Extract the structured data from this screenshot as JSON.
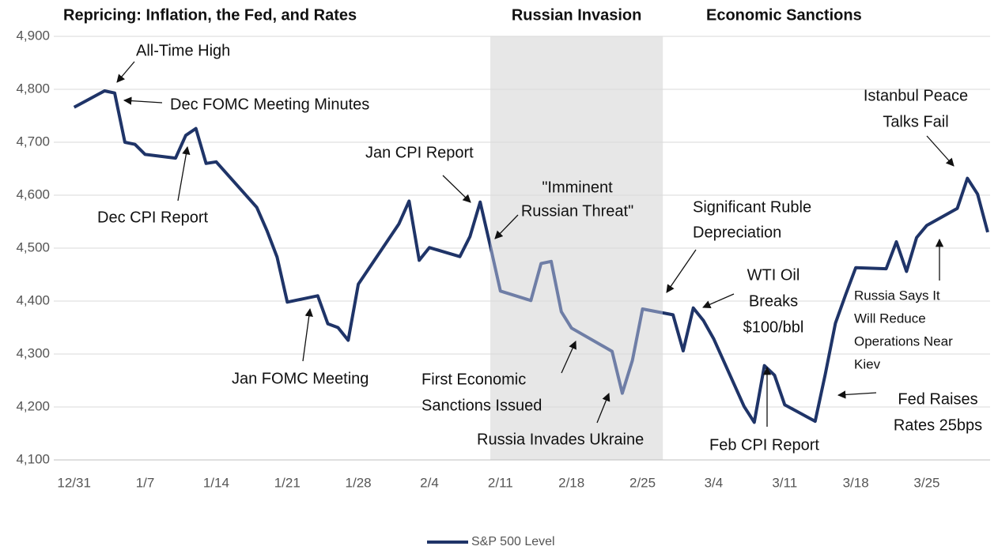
{
  "chart_data": {
    "type": "line",
    "headers": [
      "Repricing: Inflation, the Fed, and Rates",
      "Economic Sanctions"
    ],
    "shaded_region": {
      "label": "Russian Invasion",
      "start": "2/10",
      "end": "2/27",
      "color": "#e7e7e7",
      "line_color": "#6f7ea6"
    },
    "x": [
      "12/31",
      "1/3",
      "1/4",
      "1/5",
      "1/6",
      "1/7",
      "1/10",
      "1/11",
      "1/12",
      "1/13",
      "1/14",
      "1/18",
      "1/19",
      "1/20",
      "1/21",
      "1/24",
      "1/25",
      "1/26",
      "1/27",
      "1/28",
      "2/1",
      "2/2",
      "2/3",
      "2/4",
      "2/7",
      "2/8",
      "2/9",
      "2/10",
      "2/11",
      "2/14",
      "2/15",
      "2/16",
      "2/17",
      "2/18",
      "2/22",
      "2/23",
      "2/24",
      "2/25",
      "2/28",
      "3/1",
      "3/2",
      "3/3",
      "3/4",
      "3/7",
      "3/8",
      "3/9",
      "3/10",
      "3/11",
      "3/14",
      "3/15",
      "3/16",
      "3/17",
      "3/18",
      "3/21",
      "3/22",
      "3/23",
      "3/24",
      "3/25",
      "3/28",
      "3/29",
      "3/30",
      "3/31"
    ],
    "series": [
      {
        "name": "S&P 500 Level",
        "color": "#1f3468",
        "values": [
          4766,
          4797,
          4793,
          4700,
          4696,
          4677,
          4670,
          4713,
          4726,
          4660,
          4663,
          4577,
          4533,
          4483,
          4398,
          4410,
          4357,
          4350,
          4326,
          4432,
          4546,
          4589,
          4477,
          4501,
          4484,
          4522,
          4587,
          4504,
          4419,
          4401,
          4471,
          4475,
          4380,
          4349,
          4305,
          4226,
          4288,
          4385,
          4374,
          4306,
          4387,
          4363,
          4329,
          4201,
          4171,
          4278,
          4260,
          4204,
          4173,
          4262,
          4358,
          4412,
          4463,
          4461,
          4512,
          4456,
          4520,
          4543,
          4575,
          4632,
          4602,
          4530
        ]
      }
    ],
    "xlim": [
      "12/29",
      "3/31"
    ],
    "xticks": [
      "12/31",
      "1/7",
      "1/14",
      "1/21",
      "1/28",
      "2/4",
      "2/11",
      "2/18",
      "2/25",
      "3/4",
      "3/11",
      "3/18",
      "3/25"
    ],
    "ylim": [
      4100,
      4900
    ],
    "yticks": [
      {
        "value": 4100,
        "label": "4,100"
      },
      {
        "value": 4200,
        "label": "4,200"
      },
      {
        "value": 4300,
        "label": "4,300"
      },
      {
        "value": 4400,
        "label": "4,400"
      },
      {
        "value": 4500,
        "label": "4,500"
      },
      {
        "value": 4600,
        "label": "4,600"
      },
      {
        "value": 4700,
        "label": "4,700"
      },
      {
        "value": 4800,
        "label": "4,800"
      },
      {
        "value": 4900,
        "label": "4,900"
      }
    ],
    "grid": true,
    "legend": "bottom",
    "annotations": [
      {
        "lines": [
          "All-Time High"
        ]
      },
      {
        "lines": [
          "Dec FOMC Meeting Minutes"
        ]
      },
      {
        "lines": [
          "Dec CPI Report"
        ]
      },
      {
        "lines": [
          "Jan CPI Report"
        ]
      },
      {
        "lines": [
          "\"Imminent",
          "Russian Threat\""
        ]
      },
      {
        "lines": [
          "Significant Ruble",
          "Depreciation"
        ]
      },
      {
        "lines": [
          "WTI Oil",
          "Breaks",
          "$100/bbl"
        ]
      },
      {
        "lines": [
          "Istanbul Peace",
          "Talks Fail"
        ]
      },
      {
        "lines": [
          "Jan FOMC Meeting"
        ]
      },
      {
        "lines": [
          "First Economic",
          "Sanctions Issued"
        ]
      },
      {
        "lines": [
          "Russia Invades Ukraine"
        ]
      },
      {
        "lines": [
          "Feb CPI Report"
        ]
      },
      {
        "lines": [
          "Russia Says It",
          "Will Reduce",
          "Operations Near",
          "Kiev"
        ]
      },
      {
        "lines": [
          "Fed Raises",
          "Rates 25bps"
        ]
      }
    ]
  }
}
